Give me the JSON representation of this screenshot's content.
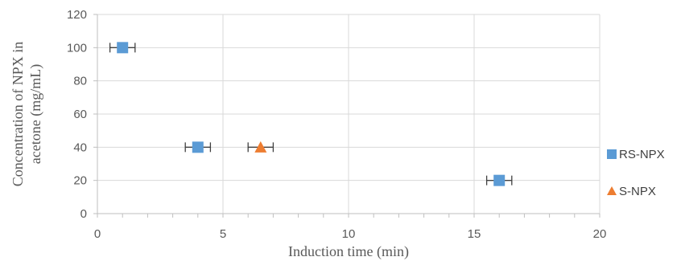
{
  "chart_data": {
    "type": "scatter",
    "title": "",
    "xlabel": "Induction time (min)",
    "ylabel": [
      "Concentration of NPX in",
      "acetone (mg/mL)"
    ],
    "xlim": [
      0,
      20
    ],
    "ylim": [
      0,
      120
    ],
    "x_ticks": [
      "0",
      "5",
      "10",
      "15",
      "20"
    ],
    "y_ticks": [
      "0",
      "20",
      "40",
      "60",
      "80",
      "100",
      "120"
    ],
    "x_minor_step": 1,
    "grid": "major gridlines on",
    "legend_position": "right",
    "series": [
      {
        "name": "RS-NPX",
        "marker": "square",
        "color": "#5B9BD5",
        "points": [
          {
            "x": 1,
            "y": 100,
            "x_err": 0.5
          },
          {
            "x": 4,
            "y": 40,
            "x_err": 0.5
          },
          {
            "x": 16,
            "y": 20,
            "x_err": 0.5
          }
        ]
      },
      {
        "name": "S-NPX",
        "marker": "triangle",
        "color": "#ED7D31",
        "points": [
          {
            "x": 6.5,
            "y": 40,
            "x_err": 0.5
          }
        ]
      }
    ]
  }
}
